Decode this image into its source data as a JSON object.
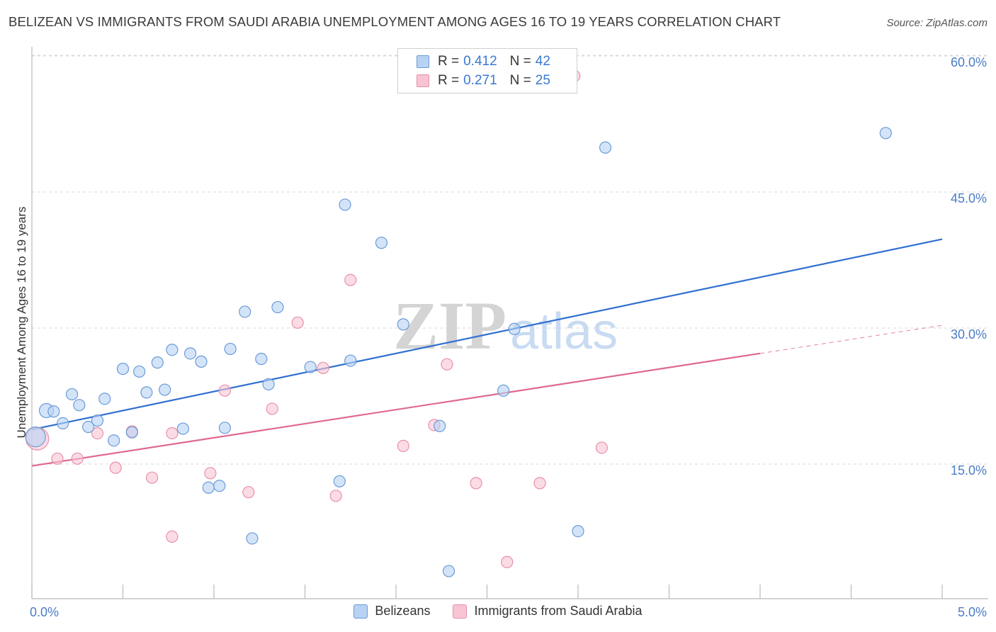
{
  "title": "BELIZEAN VS IMMIGRANTS FROM SAUDI ARABIA UNEMPLOYMENT AMONG AGES 16 TO 19 YEARS CORRELATION CHART",
  "source": "Source: ZipAtlas.com",
  "watermark": {
    "zip": "ZIP",
    "atlas": "atlas"
  },
  "legend": {
    "rows": [
      {
        "r_label": "R =",
        "r_value": "0.412",
        "n_label": "N =",
        "n_value": "42"
      },
      {
        "r_label": "R =",
        "r_value": "0.271",
        "n_label": "N =",
        "n_value": "25"
      }
    ]
  },
  "bottom_legend": {
    "series1": "Belizeans",
    "series2": "Immigrants from Saudi Arabia"
  },
  "colors": {
    "blue_fill": "#b8d2f4",
    "blue_stroke": "#6a9ad8",
    "blue_line": "#3070d0",
    "pink_fill": "#f8c4d4",
    "pink_stroke": "#e890aa",
    "pink_line": "#e06890",
    "tick_text": "#4a7cc8",
    "grid": "#d8d8d8"
  },
  "chart_data": {
    "type": "scatter",
    "title": "BELIZEAN VS IMMIGRANTS FROM SAUDI ARABIA UNEMPLOYMENT AMONG AGES 16 TO 19 YEARS CORRELATION CHART",
    "xlabel": "",
    "ylabel": "Unemployment Among Ages 16 to 19 years",
    "xlim": [
      0,
      5
    ],
    "ylim": [
      0,
      62
    ],
    "x_tick_labels": [
      {
        "value": 0,
        "label": "0.0%"
      },
      {
        "value": 5,
        "label": "5.0%"
      }
    ],
    "y_tick_labels": [
      {
        "value": 15,
        "label": "15.0%"
      },
      {
        "value": 30,
        "label": "30.0%"
      },
      {
        "value": 45,
        "label": "45.0%"
      },
      {
        "value": 60,
        "label": "60.0%"
      }
    ],
    "series": [
      {
        "name": "Belizeans",
        "r": 0.412,
        "n": 42,
        "trend": {
          "x0": 0,
          "y0": 18.8,
          "x1": 5,
          "y1": 39.8,
          "dashed_from": null
        },
        "points": [
          [
            0.02,
            18.0,
            14
          ],
          [
            0.08,
            20.9,
            10
          ],
          [
            0.12,
            20.8,
            8
          ],
          [
            0.17,
            19.5,
            8
          ],
          [
            0.22,
            22.7,
            8
          ],
          [
            0.26,
            21.5,
            8
          ],
          [
            0.31,
            19.1,
            8
          ],
          [
            0.36,
            19.8,
            8
          ],
          [
            0.4,
            22.2,
            8
          ],
          [
            0.45,
            17.6,
            8
          ],
          [
            0.5,
            25.5,
            8
          ],
          [
            0.55,
            18.5,
            8
          ],
          [
            0.59,
            25.2,
            8
          ],
          [
            0.63,
            22.9,
            8
          ],
          [
            0.69,
            26.2,
            8
          ],
          [
            0.73,
            23.2,
            8
          ],
          [
            0.77,
            27.6,
            8
          ],
          [
            0.83,
            18.9,
            8
          ],
          [
            0.87,
            27.2,
            8
          ],
          [
            0.93,
            26.3,
            8
          ],
          [
            0.97,
            12.4,
            8
          ],
          [
            1.03,
            12.6,
            8
          ],
          [
            1.06,
            19.0,
            8
          ],
          [
            1.09,
            27.7,
            8
          ],
          [
            1.17,
            31.8,
            8
          ],
          [
            1.21,
            6.8,
            8
          ],
          [
            1.26,
            26.6,
            8
          ],
          [
            1.3,
            23.8,
            8
          ],
          [
            1.35,
            32.3,
            8
          ],
          [
            1.53,
            25.7,
            8
          ],
          [
            1.69,
            13.1,
            8
          ],
          [
            1.72,
            43.6,
            8
          ],
          [
            1.75,
            26.4,
            8
          ],
          [
            1.92,
            39.4,
            8
          ],
          [
            2.04,
            30.4,
            8
          ],
          [
            2.24,
            19.2,
            8
          ],
          [
            2.29,
            3.2,
            8
          ],
          [
            2.59,
            23.1,
            8
          ],
          [
            2.65,
            29.9,
            8
          ],
          [
            3.0,
            7.6,
            8
          ],
          [
            3.15,
            49.9,
            8
          ],
          [
            4.69,
            51.5,
            8
          ]
        ]
      },
      {
        "name": "Immigrants from Saudi Arabia",
        "r": 0.271,
        "n": 25,
        "trend": {
          "x0": 0,
          "y0": 14.8,
          "x1": 5,
          "y1": 30.3,
          "dashed_from": 4.0
        },
        "points": [
          [
            0.03,
            17.8,
            16
          ],
          [
            0.14,
            15.6,
            8
          ],
          [
            0.25,
            15.6,
            8
          ],
          [
            0.36,
            18.4,
            8
          ],
          [
            0.46,
            14.6,
            8
          ],
          [
            0.55,
            18.6,
            8
          ],
          [
            0.66,
            13.5,
            8
          ],
          [
            0.77,
            18.4,
            8
          ],
          [
            0.77,
            7.0,
            8
          ],
          [
            0.98,
            14.0,
            8
          ],
          [
            1.06,
            23.1,
            8
          ],
          [
            1.19,
            11.9,
            8
          ],
          [
            1.32,
            21.1,
            8
          ],
          [
            1.46,
            30.6,
            8
          ],
          [
            1.6,
            25.6,
            8
          ],
          [
            1.67,
            11.5,
            8
          ],
          [
            1.75,
            35.3,
            8
          ],
          [
            2.04,
            17.0,
            8
          ],
          [
            2.21,
            19.3,
            8
          ],
          [
            2.28,
            26.0,
            8
          ],
          [
            2.44,
            12.9,
            8
          ],
          [
            2.61,
            4.2,
            8
          ],
          [
            2.79,
            12.9,
            8
          ],
          [
            2.98,
            57.8,
            8
          ],
          [
            3.13,
            16.8,
            8
          ]
        ]
      }
    ]
  }
}
